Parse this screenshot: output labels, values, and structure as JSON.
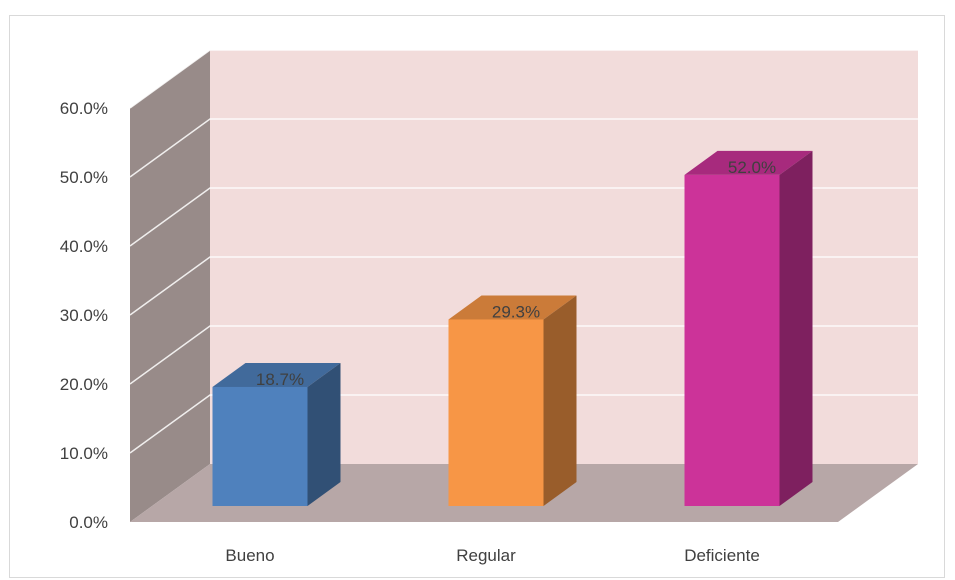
{
  "chart_data": {
    "type": "bar",
    "three_d": true,
    "categories": [
      "Bueno",
      "Regular",
      "Deficiente"
    ],
    "values": [
      18.7,
      29.3,
      52.0
    ],
    "data_labels": [
      "18.7%",
      "29.3%",
      "52.0%"
    ],
    "bar_colors": [
      "#4F81BD",
      "#F79646",
      "#CC3399"
    ],
    "title": "",
    "xlabel": "",
    "ylabel": "",
    "ylim": [
      0,
      60
    ],
    "y_ticks": [
      0,
      10,
      20,
      30,
      40,
      50,
      60
    ],
    "y_tick_labels": [
      "0.0%",
      "10.0%",
      "20.0%",
      "30.0%",
      "40.0%",
      "50.0%",
      "60.0%"
    ],
    "grid": true,
    "legend": "none",
    "back_wall_color": "#F2DCDB",
    "side_wall_color": "#988B89",
    "floor_color": "#B7A7A7"
  }
}
